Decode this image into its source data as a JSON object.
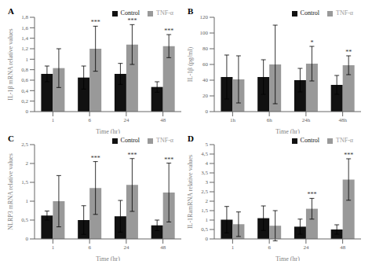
{
  "chart_data": [
    {
      "type": "bar",
      "title": "A",
      "xlabel": "Time (hr)",
      "ylabel": "IL-1β mRNA relative values",
      "categories": [
        "1",
        "6",
        "24",
        "48"
      ],
      "series": [
        {
          "name": "Control",
          "color": "#111111",
          "values": [
            0.72,
            0.65,
            0.72,
            0.47
          ],
          "errors": [
            0.15,
            0.22,
            0.2,
            0.1
          ]
        },
        {
          "name": "TNF-α",
          "color": "#999999",
          "values": [
            0.83,
            1.2,
            1.28,
            1.25
          ],
          "errors": [
            0.37,
            0.43,
            0.38,
            0.22
          ]
        }
      ],
      "ylim": [
        0,
        1.8
      ],
      "yticks": [
        0,
        {
          "value": 0.2,
          "label": "0,2"
        },
        {
          "value": 0.4,
          "label": "0,4"
        },
        {
          "value": 0.6,
          "label": "0,6"
        },
        {
          "value": 0.8,
          "label": "0,8"
        },
        1,
        {
          "value": 1.2,
          "label": "1,2"
        },
        {
          "value": 1.4,
          "label": "1,4"
        },
        {
          "value": 1.6,
          "label": "1,6"
        },
        {
          "value": 1.8,
          "label": "1,8"
        }
      ],
      "annotations": [
        {
          "category": "6",
          "series": "TNF-α",
          "text": "***"
        },
        {
          "category": "24",
          "series": "TNF-α",
          "text": "***"
        },
        {
          "category": "48",
          "series": "TNF-α",
          "text": "***"
        }
      ],
      "legend": "upper right",
      "grid": false
    },
    {
      "type": "bar",
      "title": "B",
      "xlabel": "Time (hr)",
      "ylabel": "IL-1β (pg/ml)",
      "categories": [
        "1h",
        "6h",
        "24h",
        "48h"
      ],
      "series": [
        {
          "name": "Control",
          "color": "#111111",
          "values": [
            44,
            44,
            40,
            34
          ],
          "errors": [
            28,
            22,
            15,
            12
          ]
        },
        {
          "name": "TNF-α",
          "color": "#999999",
          "values": [
            41,
            60,
            61,
            59
          ],
          "errors": [
            30,
            50,
            22,
            12
          ]
        }
      ],
      "ylim": [
        0,
        120
      ],
      "yticks": [
        0,
        20,
        40,
        60,
        80,
        100,
        120
      ],
      "annotations": [
        {
          "category": "24h",
          "series": "TNF-α",
          "text": "*"
        },
        {
          "category": "48h",
          "series": "TNF-α",
          "text": "**"
        }
      ],
      "legend": "upper right",
      "grid": false
    },
    {
      "type": "bar",
      "title": "C",
      "xlabel": "Time (hr)",
      "ylabel": "NLRP3 mRNA relative values",
      "categories": [
        "1",
        "6",
        "24",
        "48"
      ],
      "series": [
        {
          "name": "Control",
          "color": "#111111",
          "values": [
            0.62,
            0.5,
            0.6,
            0.36
          ],
          "errors": [
            0.12,
            0.38,
            0.42,
            0.14
          ]
        },
        {
          "name": "TNF-α",
          "color": "#999999",
          "values": [
            1.0,
            1.35,
            1.43,
            1.23
          ],
          "errors": [
            0.68,
            0.7,
            0.7,
            0.78
          ]
        }
      ],
      "ylim": [
        0,
        2.5
      ],
      "yticks": [
        0,
        {
          "value": 0.5,
          "label": "0,5"
        },
        1,
        {
          "value": 1.5,
          "label": "1,5"
        },
        2,
        {
          "value": 2.5,
          "label": "2,5"
        }
      ],
      "annotations": [
        {
          "category": "6",
          "series": "TNF-α",
          "text": "***"
        },
        {
          "category": "24",
          "series": "TNF-α",
          "text": "***"
        },
        {
          "category": "48",
          "series": "TNF-α",
          "text": "***"
        }
      ],
      "legend": "upper right",
      "grid": false
    },
    {
      "type": "bar",
      "title": "D",
      "xlabel": "Time (hr)",
      "ylabel": "IL-1RamRNA relative values",
      "categories": [
        "1",
        "6",
        "24",
        "48"
      ],
      "series": [
        {
          "name": "Control",
          "color": "#111111",
          "values": [
            1.02,
            1.1,
            0.65,
            0.5
          ],
          "errors": [
            0.7,
            0.65,
            0.4,
            0.25
          ]
        },
        {
          "name": "TNF-α",
          "color": "#999999",
          "values": [
            0.78,
            0.7,
            1.6,
            3.15
          ],
          "errors": [
            0.65,
            0.8,
            0.55,
            1.1
          ]
        }
      ],
      "ylim": [
        0,
        5.0
      ],
      "yticks": [
        0,
        {
          "value": 0.5,
          "label": "0,5"
        },
        1,
        {
          "value": 1.5,
          "label": "1,5"
        },
        2,
        {
          "value": 2.5,
          "label": "2,5"
        },
        3,
        {
          "value": 3.5,
          "label": "3,5"
        },
        4,
        {
          "value": 4.5,
          "label": "4,5"
        },
        5
      ],
      "annotations": [
        {
          "category": "24",
          "series": "TNF-α",
          "text": "***"
        },
        {
          "category": "48",
          "series": "TNF-α",
          "text": "***"
        }
      ],
      "legend": "upper right",
      "grid": false
    }
  ]
}
